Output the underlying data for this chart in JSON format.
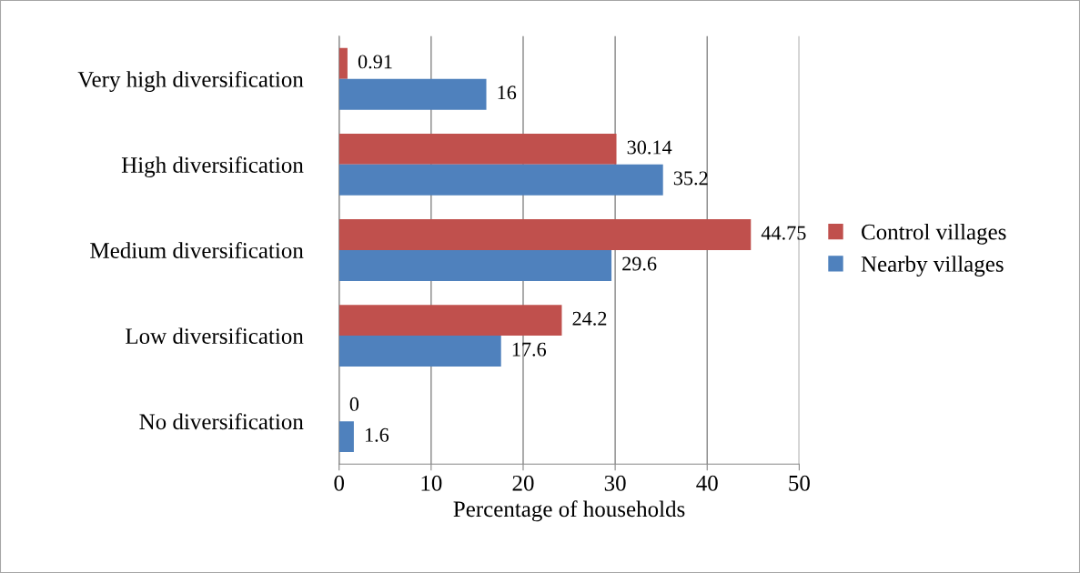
{
  "chart_data": {
    "type": "bar",
    "orientation": "horizontal",
    "categories": [
      "Very high diversification",
      "High diversification",
      "Medium diversification",
      "Low diversification",
      "No diversification"
    ],
    "series": [
      {
        "name": "Control villages",
        "color": "#c0504d",
        "values": [
          0.91,
          30.14,
          44.75,
          24.2,
          0
        ]
      },
      {
        "name": "Nearby villages",
        "color": "#4f81bd",
        "values": [
          16,
          35.2,
          29.6,
          17.6,
          1.6
        ]
      }
    ],
    "xlabel": "Percentage of households",
    "xlim": [
      0,
      50
    ],
    "xticks": [
      0,
      10,
      20,
      30,
      40,
      50
    ],
    "grid": "x",
    "legend": "right",
    "data_labels": true
  }
}
